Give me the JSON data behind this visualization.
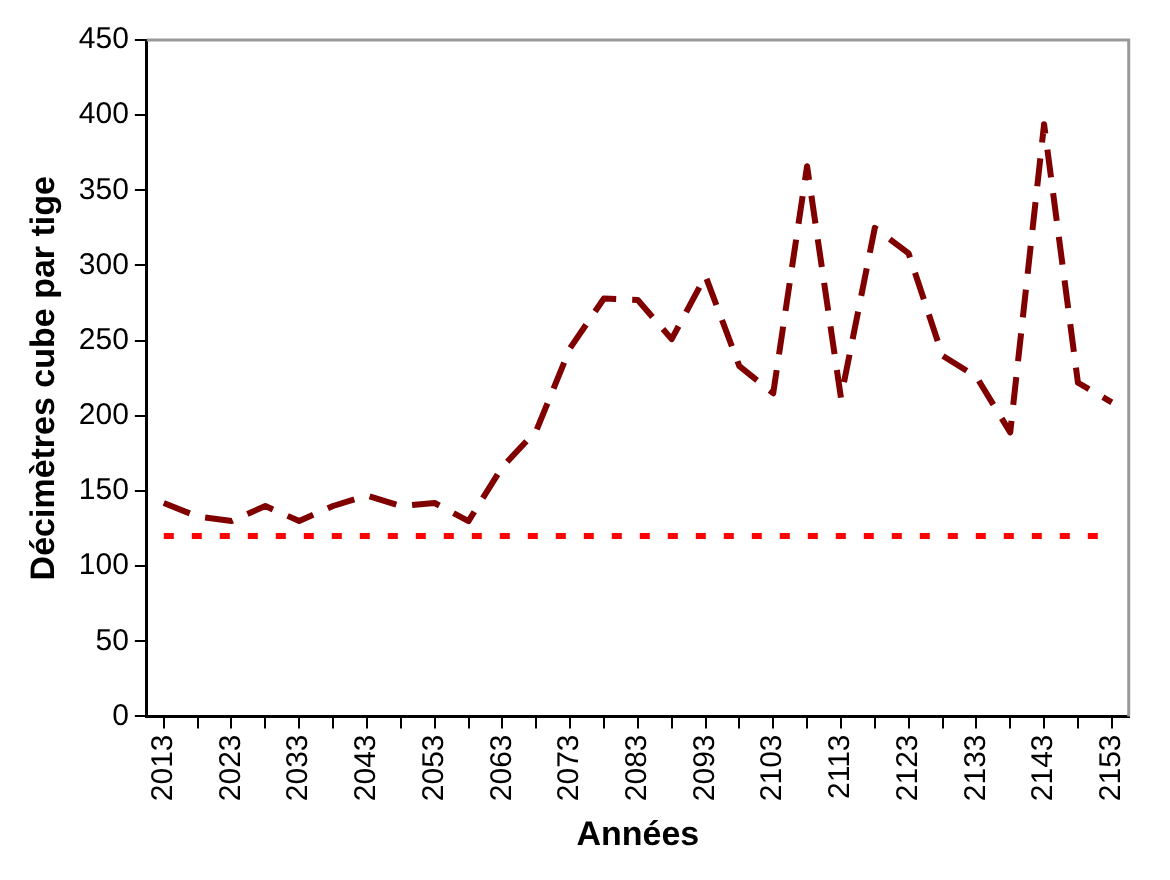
{
  "chart_data": {
    "type": "line",
    "xlabel": "Années",
    "ylabel": "Décimètres cube par tige",
    "categories": [
      "2013",
      null,
      "2023",
      null,
      "2033",
      null,
      "2043",
      null,
      "2053",
      null,
      "2063",
      null,
      "2073",
      null,
      "2083",
      null,
      "2093",
      null,
      "2103",
      null,
      "2113",
      null,
      "2123",
      null,
      "2133",
      null,
      "2143",
      null,
      "2153"
    ],
    "series": [
      {
        "color": "#800000",
        "line_style": "dashed",
        "values": [
          142,
          133,
          130,
          140,
          130,
          140,
          147,
          140,
          142,
          130,
          166,
          190,
          245,
          278,
          277,
          251,
          293,
          233,
          215,
          366,
          212,
          325,
          308,
          240,
          226,
          189,
          394,
          222,
          209
        ]
      }
    ],
    "ylim": [
      0,
      450
    ],
    "yticks": [
      0,
      50,
      100,
      150,
      200,
      250,
      300,
      350,
      400,
      450
    ],
    "grid": false,
    "legend": false,
    "marker": "none",
    "ref_lines": [
      {
        "axis": "y",
        "value": 120,
        "color": "#ff0000",
        "line_style": "dotted"
      }
    ]
  }
}
